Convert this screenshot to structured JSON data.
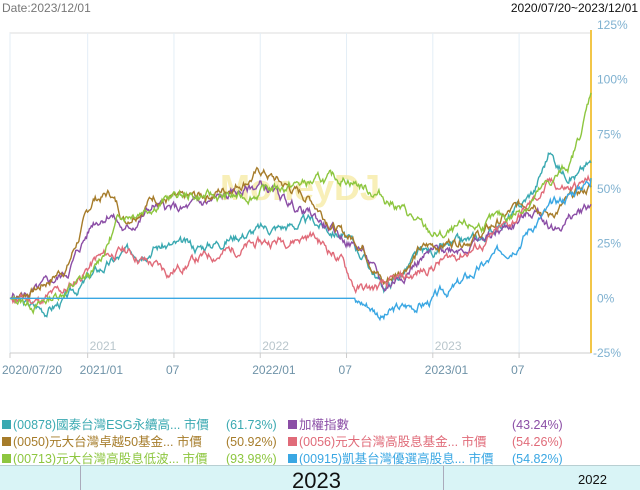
{
  "header": {
    "date_label": "Date:2023/12/01",
    "range_label": "2020/07/20~2023/12/01"
  },
  "watermark": "MoneyDJ",
  "overlay": {
    "big_text": "2023",
    "small_text": "2022"
  },
  "chart_data": {
    "type": "line",
    "x_unit": "months since 2020/07/20",
    "xlim": [
      0,
      40.4
    ],
    "ylim": [
      -25,
      125
    ],
    "y_ticks": [
      "125%",
      "100%",
      "75%",
      "50%",
      "25%",
      "0%",
      "-25%"
    ],
    "y_tick_values": [
      125,
      100,
      75,
      50,
      25,
      0,
      -25
    ],
    "x_ticks": [
      {
        "label": "2020/07/20",
        "m": 0
      },
      {
        "label": "2021/01",
        "m": 5.4
      },
      {
        "label": "07",
        "m": 11.4
      },
      {
        "label": "2022/01",
        "m": 17.4
      },
      {
        "label": "07",
        "m": 23.4
      },
      {
        "label": "2023/01",
        "m": 29.4
      },
      {
        "label": "07",
        "m": 35.4
      }
    ],
    "year_labels": [
      {
        "label": "2021",
        "m": 5.4
      },
      {
        "label": "2022",
        "m": 17.4
      },
      {
        "label": "2023",
        "m": 29.4
      }
    ],
    "grid": true,
    "legend_position": "bottom",
    "series": [
      {
        "name": "(00878)國泰台灣ESG永續高... 市價",
        "final": "(61.73%)",
        "color": "#3aa9b1",
        "seed": 3,
        "points": [
          [
            0,
            0
          ],
          [
            1,
            -3
          ],
          [
            2.5,
            -5
          ],
          [
            4,
            0
          ],
          [
            6,
            12
          ],
          [
            8,
            20
          ],
          [
            10,
            25
          ],
          [
            13,
            23
          ],
          [
            16,
            30
          ],
          [
            19,
            33
          ],
          [
            21,
            35
          ],
          [
            23,
            30
          ],
          [
            24.5,
            20
          ],
          [
            26,
            5
          ],
          [
            27,
            10
          ],
          [
            28.5,
            20
          ],
          [
            30,
            22
          ],
          [
            33,
            28
          ],
          [
            35,
            38
          ],
          [
            36.5,
            50
          ],
          [
            37.5,
            67
          ],
          [
            38.5,
            58
          ],
          [
            39.5,
            57
          ],
          [
            40.4,
            62
          ]
        ]
      },
      {
        "name": "加權指數",
        "final": "(43.24%)",
        "color": "#8b4ea6",
        "seed": 5,
        "points": [
          [
            0,
            0
          ],
          [
            2,
            3
          ],
          [
            4,
            12
          ],
          [
            5.8,
            35
          ],
          [
            7,
            40
          ],
          [
            8,
            30
          ],
          [
            10,
            42
          ],
          [
            12,
            40
          ],
          [
            15,
            46
          ],
          [
            17.5,
            52
          ],
          [
            19,
            45
          ],
          [
            21,
            38
          ],
          [
            23,
            28
          ],
          [
            24.5,
            22
          ],
          [
            26,
            4
          ],
          [
            27,
            10
          ],
          [
            28.5,
            18
          ],
          [
            30,
            22
          ],
          [
            33,
            27
          ],
          [
            35,
            34
          ],
          [
            36.5,
            40
          ],
          [
            38,
            32
          ],
          [
            40.4,
            43
          ]
        ]
      },
      {
        "name": "(0050)元大台灣卓越50基金... 市價",
        "final": "(50.92%)",
        "color": "#a67c2a",
        "seed": 7,
        "points": [
          [
            0,
            0
          ],
          [
            2,
            5
          ],
          [
            4,
            15
          ],
          [
            5.8,
            45
          ],
          [
            7,
            48
          ],
          [
            8,
            36
          ],
          [
            10,
            47
          ],
          [
            12,
            44
          ],
          [
            15,
            50
          ],
          [
            17.5,
            58
          ],
          [
            19,
            52
          ],
          [
            21,
            45
          ],
          [
            23,
            30
          ],
          [
            24.5,
            25
          ],
          [
            26,
            7
          ],
          [
            27,
            12
          ],
          [
            28.5,
            22
          ],
          [
            30,
            25
          ],
          [
            33,
            30
          ],
          [
            35,
            40
          ],
          [
            36.5,
            46
          ],
          [
            37.5,
            38
          ],
          [
            39,
            45
          ],
          [
            40.4,
            51
          ]
        ]
      },
      {
        "name": "(0056)元大台灣高股息基金... 市價",
        "final": "(54.26%)",
        "color": "#e06b79",
        "seed": 11,
        "points": [
          [
            0,
            0
          ],
          [
            2,
            -1
          ],
          [
            4,
            4
          ],
          [
            6,
            18
          ],
          [
            8,
            22
          ],
          [
            9.5,
            17
          ],
          [
            11,
            12
          ],
          [
            13,
            18
          ],
          [
            16,
            23
          ],
          [
            19,
            27
          ],
          [
            21,
            29
          ],
          [
            23,
            18
          ],
          [
            24,
            5
          ],
          [
            25,
            4
          ],
          [
            26,
            5
          ],
          [
            28,
            10
          ],
          [
            30,
            17
          ],
          [
            33,
            25
          ],
          [
            35,
            35
          ],
          [
            36.5,
            45
          ],
          [
            37.5,
            52
          ],
          [
            39,
            50
          ],
          [
            40.4,
            54
          ]
        ]
      },
      {
        "name": "(00713)元大台灣高股息低波... 市價",
        "final": "(93.98%)",
        "color": "#8dc63f",
        "seed": 13,
        "points": [
          [
            0,
            0
          ],
          [
            2,
            -3
          ],
          [
            5.8,
            11
          ],
          [
            7.7,
            38
          ],
          [
            11.5,
            47
          ],
          [
            16,
            46
          ],
          [
            18,
            50
          ],
          [
            20,
            52
          ],
          [
            23.5,
            55
          ],
          [
            26.9,
            43
          ],
          [
            29,
            30
          ],
          [
            30,
            28
          ],
          [
            33,
            34
          ],
          [
            35,
            38
          ],
          [
            37.5,
            52
          ],
          [
            39,
            62
          ],
          [
            39.8,
            78
          ],
          [
            40.4,
            94
          ]
        ]
      },
      {
        "name": "(00915)凱基台灣優選高股息... 市價",
        "final": "(54.82%)",
        "color": "#3aa7e3",
        "seed": 17,
        "flat_until": 24,
        "points": [
          [
            0,
            0
          ],
          [
            24,
            0
          ],
          [
            25,
            -3
          ],
          [
            26,
            -8
          ],
          [
            27,
            -5
          ],
          [
            29,
            -2
          ],
          [
            31,
            5
          ],
          [
            33,
            15
          ],
          [
            35,
            25
          ],
          [
            36.5,
            35
          ],
          [
            38,
            43
          ],
          [
            39,
            48
          ],
          [
            40.4,
            55
          ]
        ]
      }
    ]
  }
}
